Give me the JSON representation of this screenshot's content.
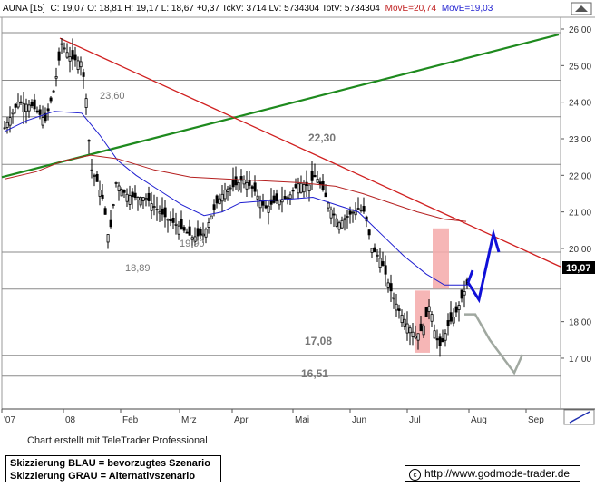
{
  "header": {
    "symbol": "AUNA [15]",
    "ohlc": "C: 19,07 O: 18,81 H: 19,17 L: 18,67 +0,37 TckV: 3714 LV: 5734304 TotV: 5734304",
    "ma1": "MovE=20,74",
    "ma2": "MovE=19,03"
  },
  "price_tag": "19,07",
  "footer": {
    "credit": "Chart erstellt mit TeleTrader Professional",
    "legend_blue": "Skizzierung BLAU = bevorzugtes Szenario",
    "legend_gray": "Skizzierung GRAU = Alternativszenario",
    "url": "http://www.godmode-trader.de",
    "copyright": "c"
  },
  "chart_data": {
    "type": "candlestick",
    "y_ticks": [
      "26,00",
      "25,00",
      "24,00",
      "23,00",
      "22,00",
      "21,00",
      "20,00",
      "18,00",
      "17,00"
    ],
    "ylim": [
      16.0,
      26.3
    ],
    "x_ticks": [
      "'07",
      "08",
      "Feb",
      "Mrz",
      "Apr",
      "Mai",
      "Jun",
      "Jul",
      "Aug",
      "Sep"
    ],
    "annotations": [
      "23,60",
      "22,30",
      "19,90",
      "18,89",
      "17,08",
      "16,51"
    ],
    "horizontal_levels": [
      25.9,
      24.6,
      23.6,
      22.3,
      19.9,
      18.89,
      17.08,
      16.51
    ],
    "colors": {
      "candles": "#000000",
      "ma_blue": "#1f1fd0",
      "ma_red": "#b52020",
      "trend_green": "#1e8a1e",
      "trend_red": "#d02020",
      "scenario_blue": "#1010d8",
      "scenario_gray": "#a0a8a0",
      "zones": "#f4a9a9"
    },
    "series": [
      {
        "name": "MovE=20,74",
        "color": "#b52020",
        "type": "line"
      },
      {
        "name": "MovE=19,03",
        "color": "#1f1fd0",
        "type": "line"
      }
    ],
    "key_prices": {
      "start": 23.3,
      "high": 25.7,
      "jan_low": 20.1,
      "feb_mar_range": [
        19.9,
        21.8
      ],
      "may_high": 22.3,
      "jul_low": 17.1,
      "last_close": 19.07
    },
    "scenario_blue": {
      "points": [
        19.07,
        18.6,
        20.4,
        19.9
      ]
    },
    "scenario_gray": {
      "points": [
        18.2,
        18.2,
        17.5,
        16.6,
        17.1
      ]
    }
  }
}
